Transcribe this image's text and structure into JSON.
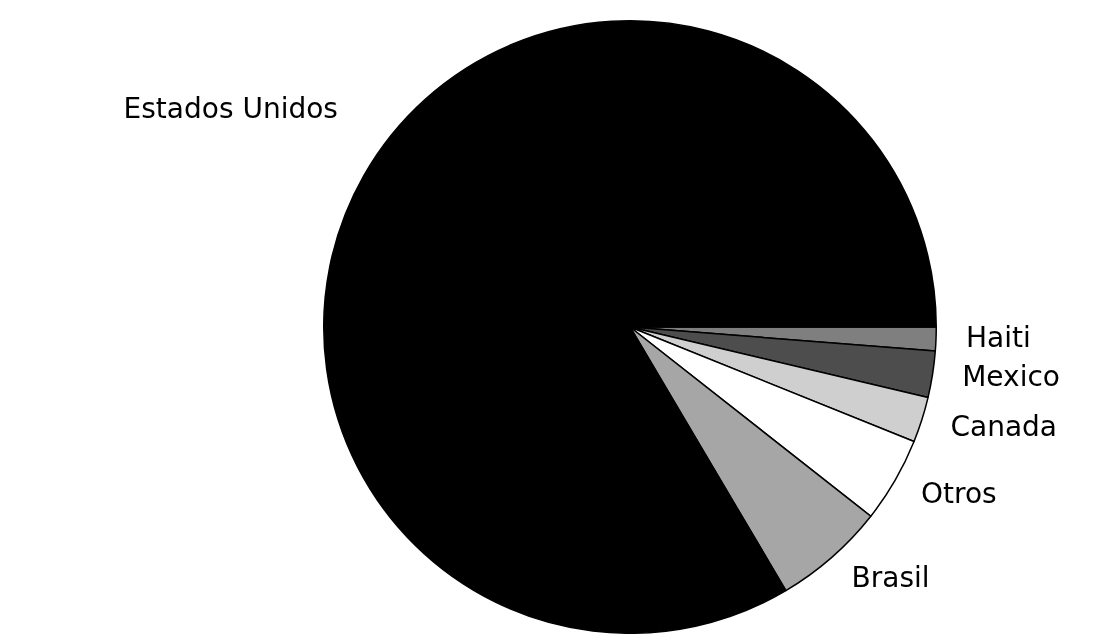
{
  "chart_data": {
    "type": "pie",
    "categories": [
      "Haiti",
      "Mexico",
      "Canada",
      "Otros",
      "Brasil",
      "Estados Unidos"
    ],
    "values": [
      1.25,
      2.45,
      2.4,
      4.5,
      5.9,
      83.5
    ],
    "colors": [
      "#7f7f7f",
      "#4d4d4d",
      "#cfcfcf",
      "#ffffff",
      "#a6a6a6",
      "#000000"
    ],
    "legend": false
  }
}
